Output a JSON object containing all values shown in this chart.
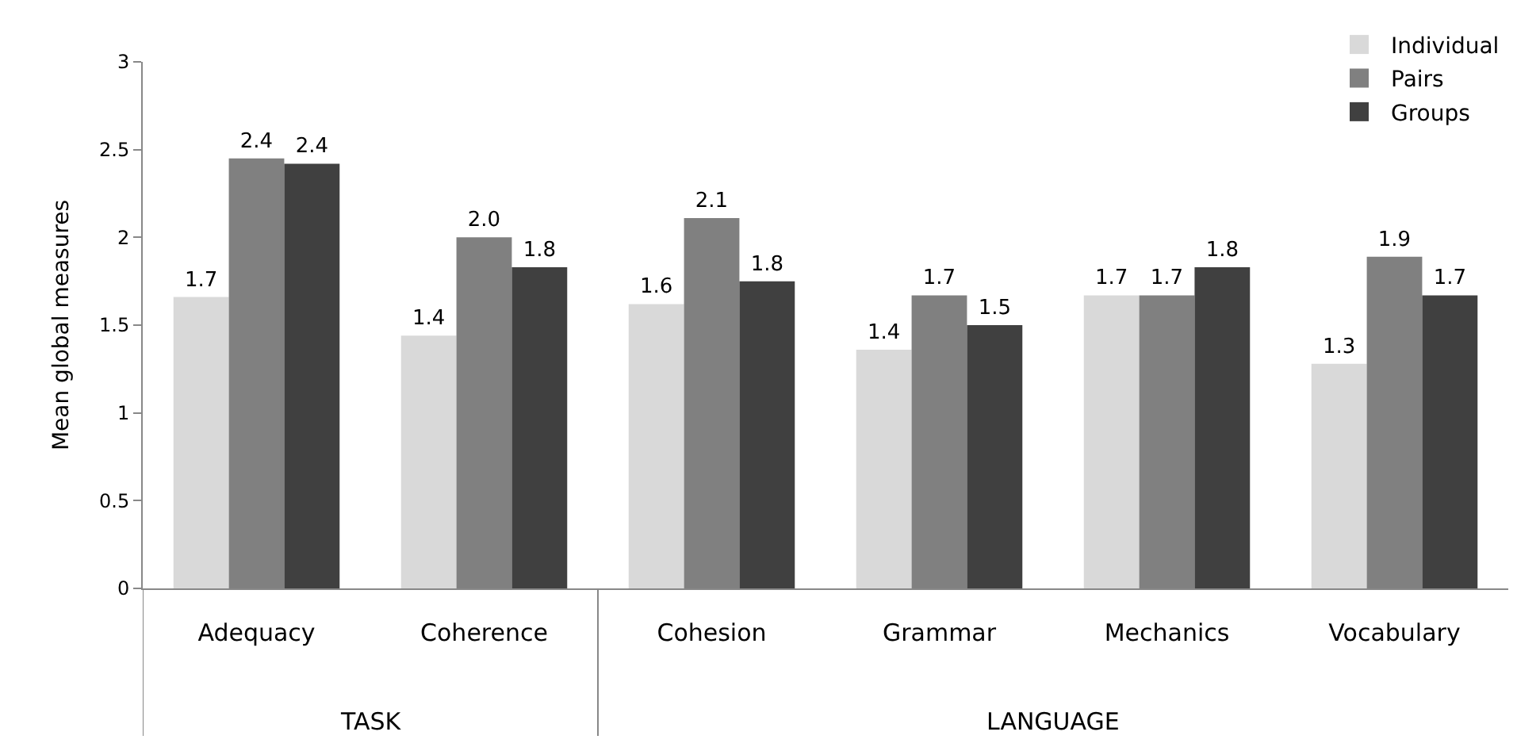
{
  "chart_data": {
    "type": "bar",
    "categories": [
      "Adequacy",
      "Coherence",
      "Cohesion",
      "Grammar",
      "Mechanics",
      "Vocabulary"
    ],
    "ylabel": "Mean global measures",
    "series": [
      {
        "name": "Individual",
        "color": "#d9d9d9",
        "values": [
          1.66,
          1.44,
          1.62,
          1.36,
          1.67,
          1.28
        ],
        "value_labels": [
          "1.7",
          "1.4",
          "1.6",
          "1.4",
          "1.7",
          "1.3"
        ]
      },
      {
        "name": "Pairs",
        "color": "#808080",
        "values": [
          2.45,
          2.0,
          2.11,
          1.67,
          1.67,
          1.89
        ],
        "value_labels": [
          "2.4",
          "2.0",
          "2.1",
          "1.7",
          "1.7",
          "1.9"
        ]
      },
      {
        "name": "Groups",
        "color": "#404040",
        "values": [
          2.42,
          1.83,
          1.75,
          1.5,
          1.83,
          1.67
        ],
        "value_labels": [
          "2.4",
          "1.8",
          "1.8",
          "1.5",
          "1.8",
          "1.7"
        ]
      }
    ],
    "annotations": [
      "TASK",
      "LANGUAGE"
    ],
    "ylim": [
      0,
      3
    ],
    "yticks": [
      0,
      0.5,
      1,
      1.5,
      2,
      2.5,
      3
    ],
    "legend": "top right"
  }
}
